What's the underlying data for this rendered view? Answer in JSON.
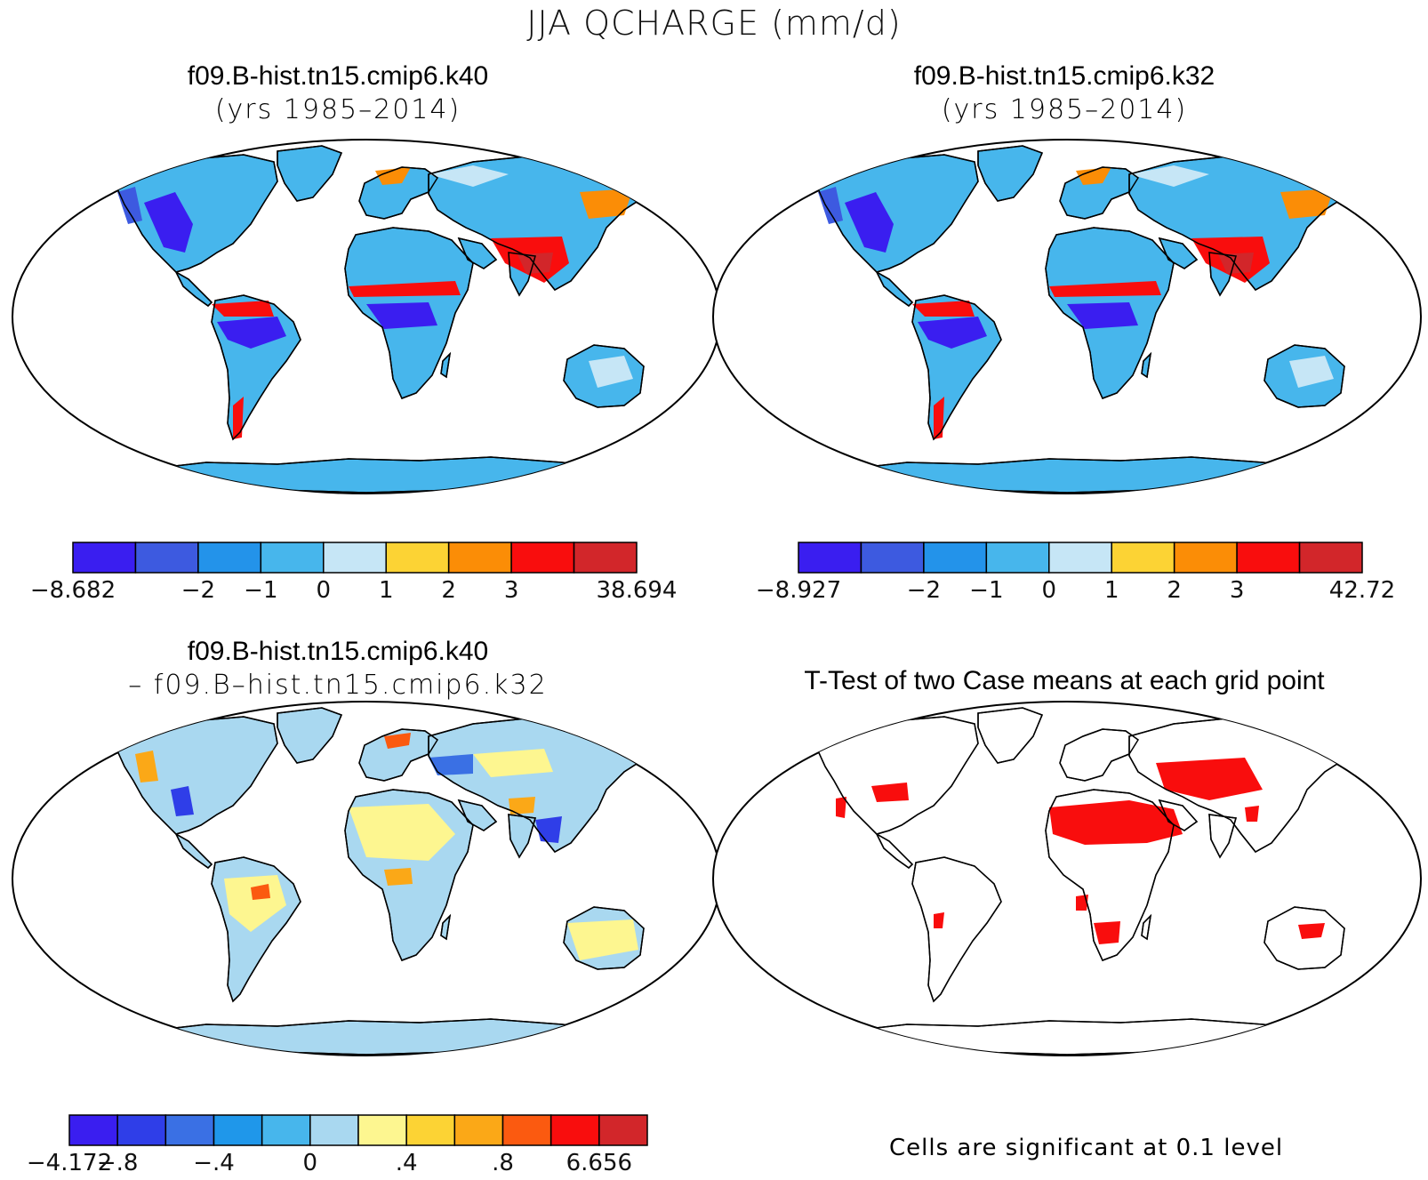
{
  "title": "JJA QCHARGE (mm/d)",
  "panels": [
    {
      "id": "k40",
      "title_line1": "f09.B-hist.tn15.cmip6.k40",
      "title_line2": "(yrs 1985–2014)"
    },
    {
      "id": "k32",
      "title_line1": "f09.B-hist.tn15.cmip6.k32",
      "title_line2": "(yrs 1985–2014)"
    },
    {
      "id": "diff",
      "title_line1": "f09.B-hist.tn15.cmip6.k40",
      "title_line2": "– f09.B–hist.tn15.cmip6.k32"
    },
    {
      "id": "ttest",
      "title_line1": "T-Test of two Case means at each grid point",
      "note": "Cells are significant at 0.1 level"
    }
  ],
  "colorbars": [
    {
      "id": "cb-k40",
      "colors": [
        "#3a1ef0",
        "#3d5ae0",
        "#2393ea",
        "#47b6ec",
        "#c6e6f6",
        "#fcd334",
        "#fb8d06",
        "#f90d0d",
        "#d2262a"
      ],
      "labels": [
        "−8.682",
        "",
        "−2",
        "−1",
        "0",
        "1",
        "2",
        "3",
        "",
        "38.694"
      ]
    },
    {
      "id": "cb-k32",
      "colors": [
        "#3a1ef0",
        "#3d5ae0",
        "#2393ea",
        "#47b6ec",
        "#c6e6f6",
        "#fcd334",
        "#fb8d06",
        "#f90d0d",
        "#d2262a"
      ],
      "labels": [
        "−8.927",
        "",
        "−2",
        "−1",
        "0",
        "1",
        "2",
        "3",
        "",
        "42.72"
      ]
    },
    {
      "id": "cb-diff",
      "colors": [
        "#3a1ef0",
        "#2f3ee8",
        "#3a70e4",
        "#1f97ea",
        "#47b6ec",
        "#a9d8f0",
        "#fdf690",
        "#fcd334",
        "#fba817",
        "#fb5a10",
        "#f90d0d",
        "#d2262a"
      ],
      "labels": [
        "−4.172",
        "−.8",
        "",
        "−.4",
        "",
        "0",
        "",
        ".4",
        "",
        ".8",
        "",
        "6.656"
      ]
    }
  ],
  "map_colors": {
    "ocean": "#ffffff",
    "k40": {
      "land": "#47b6ec",
      "wet": "#3a1ef0",
      "mid": "#2393ea",
      "light": "#c6e6f6",
      "hot": "#f90d0d",
      "orange": "#fb8d06"
    },
    "diff": {
      "land": "#a9d8f0",
      "pale": "#fdf690",
      "blue": "#3a70e4",
      "deep": "#2f3ee8",
      "warm": "#fba817",
      "red": "#fb5a10"
    },
    "ttest": {
      "land": "#ffffff",
      "sig": "#f90d0d"
    }
  }
}
